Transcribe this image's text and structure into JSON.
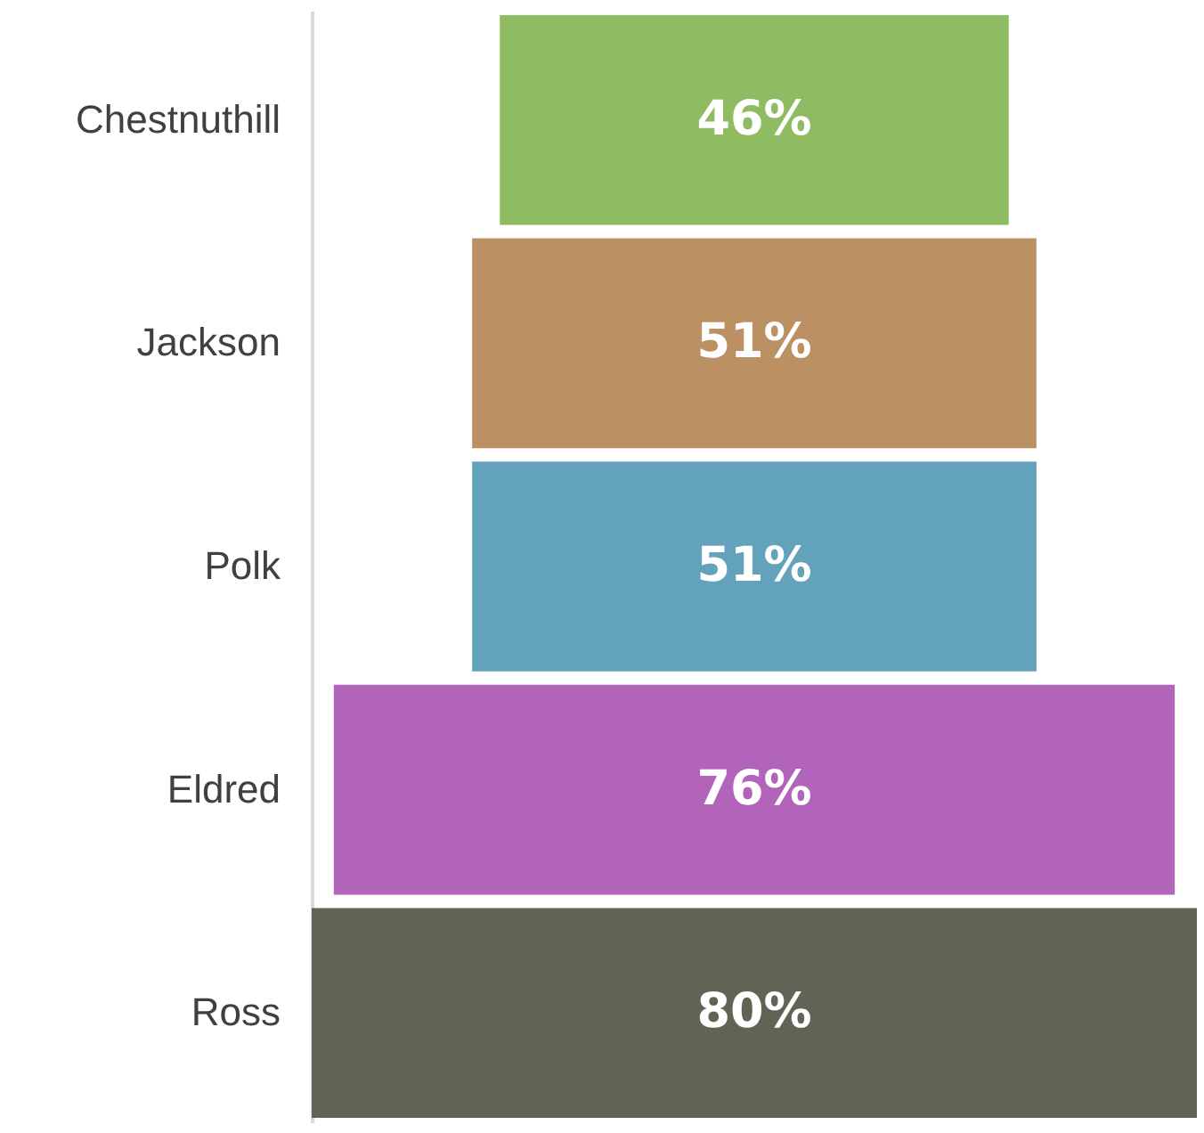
{
  "chart_data": {
    "type": "other",
    "categories": [
      "Chestnuthill",
      "Jackson",
      "Polk",
      "Eldred",
      "Ross"
    ],
    "values": [
      46,
      51,
      51,
      76,
      80
    ],
    "colors": [
      "#8fbb63",
      "#bb9063",
      "#62a2bb",
      "#b264bb",
      "#5f6455"
    ],
    "value_labels": [
      "46%",
      "51%",
      "51%",
      "76%",
      "80%"
    ]
  }
}
